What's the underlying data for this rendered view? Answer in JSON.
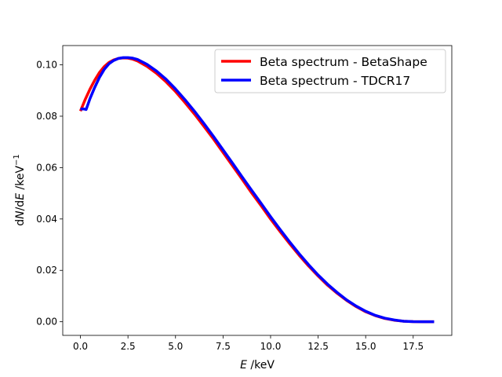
{
  "chart_data": {
    "type": "line",
    "xlabel": {
      "var": "E",
      "unit": " /keV"
    },
    "ylabel": {
      "prefix": "d",
      "var1": "N",
      "mid": "/d",
      "var2": "E",
      "unit": " /keV",
      "sup": "−1"
    },
    "xlim": [
      -0.93,
      19.53
    ],
    "ylim": [
      -0.0053,
      0.1075
    ],
    "xticks": [
      0.0,
      2.5,
      5.0,
      7.5,
      10.0,
      12.5,
      15.0,
      17.5
    ],
    "xtick_labels": [
      "0.0",
      "2.5",
      "5.0",
      "7.5",
      "10.0",
      "12.5",
      "15.0",
      "17.5"
    ],
    "yticks": [
      0.0,
      0.02,
      0.04,
      0.06,
      0.08,
      0.1
    ],
    "ytick_labels": [
      "0.00",
      "0.02",
      "0.04",
      "0.06",
      "0.08",
      "0.10"
    ],
    "grid": false,
    "legend_position": "top-right",
    "series": [
      {
        "name": "Beta spectrum - BetaShape",
        "color": "#ff0000",
        "x": [
          0.0,
          0.25,
          0.5,
          0.75,
          1.0,
          1.25,
          1.5,
          1.75,
          2.0,
          2.25,
          2.5,
          2.75,
          3.0,
          3.5,
          4.0,
          4.5,
          5.0,
          5.5,
          6.0,
          6.5,
          7.0,
          7.5,
          8.0,
          8.5,
          9.0,
          9.5,
          10.0,
          10.5,
          11.0,
          11.5,
          12.0,
          12.5,
          13.0,
          13.5,
          14.0,
          14.5,
          15.0,
          15.5,
          16.0,
          16.5,
          17.0,
          17.5,
          18.0,
          18.3,
          18.6
        ],
        "y": [
          0.082,
          0.0865,
          0.0905,
          0.094,
          0.097,
          0.0993,
          0.1009,
          0.1019,
          0.1025,
          0.1027,
          0.1026,
          0.1022,
          0.1015,
          0.0994,
          0.0967,
          0.0934,
          0.0896,
          0.0853,
          0.0808,
          0.076,
          0.0711,
          0.0659,
          0.0607,
          0.0555,
          0.0502,
          0.0452,
          0.04,
          0.0351,
          0.0304,
          0.0259,
          0.0217,
          0.0178,
          0.0142,
          0.0111,
          0.0083,
          0.0059,
          0.0039,
          0.0024,
          0.0013,
          0.0006,
          0.0002,
          5e-05,
          0.0,
          0.0,
          0.0
        ]
      },
      {
        "name": "Beta spectrum - TDCR17",
        "color": "#0000ff",
        "x": [
          0.0,
          0.1,
          0.2,
          0.3,
          0.5,
          0.75,
          1.0,
          1.25,
          1.5,
          1.75,
          2.0,
          2.25,
          2.5,
          2.75,
          3.0,
          3.5,
          4.0,
          4.5,
          5.0,
          5.5,
          6.0,
          6.5,
          7.0,
          7.5,
          8.0,
          8.5,
          9.0,
          9.5,
          10.0,
          10.5,
          11.0,
          11.5,
          12.0,
          12.5,
          13.0,
          13.5,
          14.0,
          14.5,
          15.0,
          15.5,
          16.0,
          16.5,
          17.0,
          17.5,
          18.0,
          18.3,
          18.6
        ],
        "y": [
          0.0828,
          0.0828,
          0.0828,
          0.0826,
          0.0868,
          0.0912,
          0.0951,
          0.0982,
          0.1004,
          0.1017,
          0.1025,
          0.1028,
          0.1028,
          0.1026,
          0.1021,
          0.1002,
          0.0976,
          0.0944,
          0.0906,
          0.0864,
          0.0819,
          0.0771,
          0.0721,
          0.0669,
          0.0617,
          0.0564,
          0.0512,
          0.0461,
          0.0409,
          0.0359,
          0.0311,
          0.0265,
          0.0222,
          0.0182,
          0.0146,
          0.0114,
          0.0085,
          0.0061,
          0.0041,
          0.0025,
          0.0014,
          0.0007,
          0.0002,
          6e-05,
          0.0,
          0.0,
          0.0
        ]
      }
    ]
  }
}
